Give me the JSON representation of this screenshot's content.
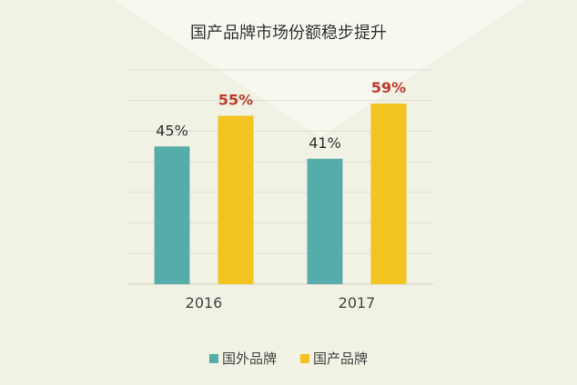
{
  "chart_data": {
    "type": "bar",
    "title": "国产品牌市场份额稳步提升",
    "categories": [
      "2016",
      "2017"
    ],
    "series": [
      {
        "name": "国外品牌",
        "values": [
          45,
          41
        ],
        "labels": [
          "45%",
          "41%"
        ],
        "color": "#55aca8",
        "label_color": "#333333"
      },
      {
        "name": "国产品牌",
        "values": [
          55,
          59
        ],
        "labels": [
          "55%",
          "59%"
        ],
        "color": "#f3c31f",
        "label_color": "#c0392b"
      }
    ],
    "xlabel": "",
    "ylabel": "",
    "ylim": [
      0,
      70
    ],
    "grid": true,
    "legend": "bottom-center"
  }
}
